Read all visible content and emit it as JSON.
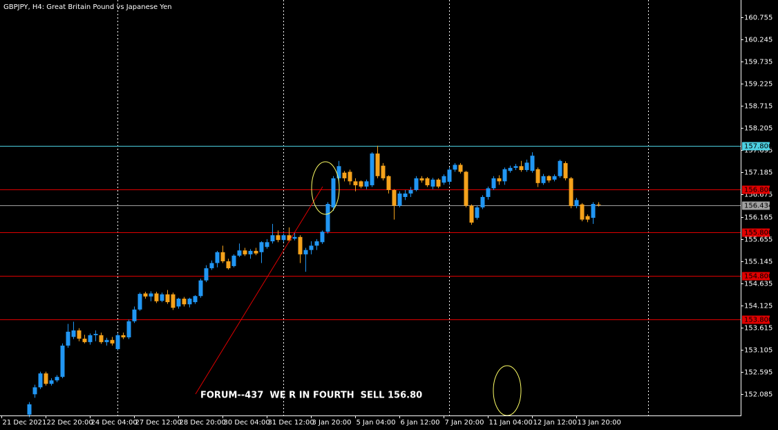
{
  "chart_data": {
    "type": "candlestick",
    "title": "GBPJPY, H4:  Great Britain Pound vs Japanese Yen",
    "annotation": "FORUM--437  WE R IN FOURTH  SELL 156.80",
    "up_color": "#2196f3",
    "down_color": "#f5a21b",
    "categories": [
      "21 Dec 2021",
      null,
      null,
      null,
      null,
      null,
      null,
      null,
      "22 Dec 20:00",
      null,
      null,
      null,
      null,
      null,
      null,
      null,
      "24 Dec 04:00",
      null,
      null,
      null,
      null,
      null,
      null,
      null,
      "27 Dec 12:00",
      null,
      null,
      null,
      null,
      null,
      null,
      null,
      "28 Dec 20:00",
      null,
      null,
      null,
      null,
      null,
      null,
      null,
      "30 Dec 04:00",
      null,
      null,
      null,
      null,
      null,
      null,
      null,
      "31 Dec 12:00",
      null,
      null,
      null,
      null,
      null,
      null,
      null,
      "3 Jan 20:00",
      null,
      null,
      null,
      null,
      null,
      null,
      null,
      "5 Jan 04:00",
      null,
      null,
      null,
      null,
      null,
      null,
      null,
      "6 Jan 12:00",
      null,
      null,
      null,
      null,
      null,
      null,
      null,
      "7 Jan 20:00",
      null,
      null,
      null,
      null,
      null,
      null,
      null,
      "11 Jan 04:00",
      null,
      null,
      null,
      null,
      null,
      null,
      null,
      "12 Jan 12:00",
      null,
      null,
      null,
      null,
      null,
      null,
      null,
      "13 Jan 20:00",
      null,
      null,
      null,
      null
    ],
    "open": [
      null,
      null,
      null,
      null,
      null,
      151.61,
      152.08,
      152.24,
      152.56,
      152.32,
      152.4,
      152.48,
      153.2,
      153.4,
      153.55,
      153.36,
      153.28,
      153.44,
      153.44,
      153.28,
      153.33,
      153.12,
      153.44,
      153.39,
      153.76,
      154.03,
      154.4,
      154.33,
      154.4,
      154.23,
      154.38,
      154.38,
      154.1,
      154.28,
      154.15,
      154.2,
      154.34,
      154.7,
      154.98,
      155.1,
      155.35,
      155.14,
      155.03,
      155.27,
      155.39,
      155.3,
      155.38,
      155.35,
      155.47,
      155.6,
      155.74,
      155.63,
      155.74,
      155.66,
      155.7,
      155.3,
      155.4,
      155.5,
      155.58,
      155.82,
      156.38,
      157.05,
      157.18,
      157.2,
      156.98,
      156.98,
      156.86,
      156.89,
      157.62,
      157.34,
      157.1,
      156.78,
      156.42,
      156.62,
      156.7,
      156.78,
      157.05,
      157.05,
      156.86,
      157.02,
      156.95,
      156.97,
      157.25,
      157.36,
      157.2,
      156.42,
      156.14,
      156.38,
      156.62,
      156.82,
      157.05,
      156.98,
      157.22,
      157.29,
      157.33,
      157.24,
      157.22,
      157.26,
      156.94,
      157.1,
      157.02,
      157.1,
      157.4,
      157.05,
      156.41,
      156.45,
      156.18,
      156.14,
      156.45
    ],
    "high": [
      null,
      null,
      null,
      null,
      null,
      151.9,
      152.3,
      152.6,
      152.6,
      152.45,
      152.52,
      153.25,
      153.7,
      153.75,
      153.6,
      153.45,
      153.48,
      153.55,
      153.5,
      153.38,
      153.4,
      153.48,
      153.5,
      153.8,
      154.1,
      154.42,
      154.44,
      154.45,
      154.44,
      154.42,
      154.48,
      154.42,
      154.3,
      154.32,
      154.3,
      154.36,
      154.74,
      155.05,
      155.16,
      155.38,
      155.5,
      155.2,
      155.3,
      155.55,
      155.45,
      155.42,
      155.45,
      155.6,
      155.65,
      156.0,
      155.85,
      155.78,
      155.92,
      155.8,
      155.74,
      155.45,
      155.6,
      155.65,
      155.85,
      156.5,
      157.1,
      157.45,
      157.22,
      157.25,
      157.05,
      157.0,
      157.02,
      157.65,
      157.8,
      157.4,
      157.12,
      156.8,
      156.75,
      156.78,
      156.85,
      157.1,
      157.1,
      157.08,
      157.06,
      157.05,
      157.14,
      157.3,
      157.4,
      157.4,
      157.22,
      156.45,
      156.42,
      156.66,
      156.86,
      157.1,
      157.12,
      157.3,
      157.34,
      157.38,
      157.45,
      157.48,
      157.65,
      157.3,
      157.15,
      157.12,
      157.14,
      157.48,
      157.44,
      157.08,
      156.6,
      156.48,
      156.22,
      156.5,
      156.5
    ],
    "low": [
      null,
      null,
      null,
      null,
      null,
      151.55,
      152.0,
      152.2,
      152.28,
      152.28,
      152.36,
      152.45,
      153.15,
      153.35,
      153.3,
      153.25,
      153.22,
      153.3,
      153.24,
      153.2,
      153.2,
      153.1,
      153.35,
      153.35,
      153.72,
      154.0,
      154.28,
      154.22,
      154.18,
      154.2,
      154.16,
      154.02,
      154.05,
      154.1,
      154.08,
      154.16,
      154.3,
      154.66,
      154.94,
      155.0,
      155.1,
      154.95,
      155.0,
      155.24,
      155.26,
      155.2,
      155.28,
      155.1,
      155.43,
      155.55,
      155.58,
      155.58,
      155.58,
      155.62,
      155.1,
      154.9,
      155.3,
      155.4,
      155.54,
      155.78,
      156.3,
      156.98,
      156.98,
      156.9,
      156.75,
      156.82,
      156.8,
      156.85,
      157.05,
      157.0,
      156.7,
      156.1,
      156.38,
      156.55,
      156.62,
      156.75,
      156.95,
      156.85,
      156.8,
      156.82,
      156.9,
      156.9,
      157.2,
      157.16,
      156.38,
      155.98,
      156.1,
      156.34,
      156.56,
      156.78,
      156.9,
      156.9,
      157.18,
      157.24,
      157.2,
      157.2,
      157.18,
      156.85,
      156.9,
      156.95,
      156.98,
      157.06,
      157.0,
      156.36,
      156.36,
      156.06,
      156.04,
      156.0,
      156.4
    ],
    "close": [
      null,
      null,
      null,
      null,
      null,
      151.85,
      152.24,
      152.56,
      152.32,
      152.4,
      152.48,
      153.2,
      153.52,
      153.55,
      153.36,
      153.28,
      153.44,
      153.47,
      153.28,
      153.33,
      153.25,
      153.44,
      153.39,
      153.76,
      154.03,
      154.39,
      154.33,
      154.4,
      154.22,
      154.38,
      154.2,
      154.07,
      154.28,
      154.15,
      154.28,
      154.34,
      154.7,
      154.98,
      155.1,
      155.35,
      155.14,
      154.98,
      155.27,
      155.39,
      155.3,
      155.38,
      155.32,
      155.58,
      155.58,
      155.74,
      155.63,
      155.74,
      155.62,
      155.7,
      155.3,
      155.4,
      155.5,
      155.6,
      155.82,
      156.46,
      157.05,
      157.33,
      157.05,
      156.98,
      156.89,
      156.86,
      156.98,
      157.62,
      157.1,
      157.05,
      156.78,
      156.42,
      156.7,
      156.7,
      156.78,
      157.05,
      157.0,
      156.89,
      157.02,
      156.86,
      157.1,
      157.25,
      157.36,
      157.2,
      156.42,
      156.03,
      156.38,
      156.62,
      156.82,
      157.05,
      156.98,
      157.26,
      157.29,
      157.33,
      157.24,
      157.41,
      157.57,
      156.94,
      157.1,
      157.0,
      157.1,
      157.45,
      157.05,
      156.41,
      156.55,
      156.1,
      156.1,
      156.46,
      156.434
    ],
    "ylim": [
      151.608,
      161.153
    ],
    "yticks": [
      160.755,
      160.245,
      159.735,
      159.225,
      158.715,
      158.205,
      157.695,
      157.185,
      156.675,
      156.165,
      155.655,
      155.145,
      154.635,
      154.125,
      153.615,
      153.105,
      152.595,
      152.085
    ],
    "hlines": [
      {
        "value": 157.8,
        "label": "157.800",
        "color": "#4dd0e1"
      },
      {
        "value": 156.8,
        "label": "156.800",
        "color": "#e00000"
      },
      {
        "value": 156.434,
        "label": "156.434",
        "color": "#a0a0a0"
      },
      {
        "value": 155.8,
        "label": "155.800",
        "color": "#e00000"
      },
      {
        "value": 154.8,
        "label": "154.800",
        "color": "#e00000"
      },
      {
        "value": 153.8,
        "label": "153.800",
        "color": "#e00000"
      }
    ]
  }
}
